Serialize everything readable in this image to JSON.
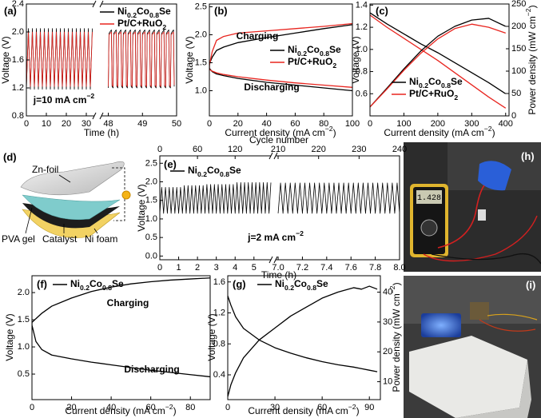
{
  "chart_data": [
    {
      "type": "line",
      "label": "(a)",
      "xlabel": "Time (h)",
      "ylabel": "Voltage (V)",
      "xlim": [
        0,
        50
      ],
      "x_break": [
        34,
        47.8
      ],
      "xticks": [
        0,
        10,
        20,
        30,
        48,
        49,
        50
      ],
      "ylim": [
        0.8,
        2.4
      ],
      "yticks": [
        0.8,
        1.2,
        1.6,
        {
          "value": 2,
          "label": "2.0"
        },
        2.4
      ],
      "annotations": [
        "j=10 mA cm−2"
      ],
      "x": [
        0,
        1,
        2,
        3,
        4,
        5,
        6,
        7,
        8,
        9,
        10,
        11,
        12,
        13,
        14,
        15,
        16,
        17,
        18,
        19,
        20,
        21,
        22,
        23,
        24,
        25,
        26,
        27,
        28,
        29,
        30,
        31,
        32,
        33,
        40,
        48,
        48.02,
        48.09,
        48.11,
        48.14,
        48.16,
        48.23,
        48.25,
        48.28,
        48.3,
        48.37,
        48.39,
        48.42,
        48.44,
        48.51,
        48.53,
        48.56,
        48.58,
        48.65,
        48.67,
        48.7,
        48.72,
        48.79,
        48.81,
        48.84,
        48.86,
        48.93,
        48.95,
        48.98,
        49,
        49.07,
        49.09,
        49.12,
        49.14,
        49.21,
        49.23,
        49.26,
        49.28,
        49.35,
        49.37,
        49.4,
        49.42,
        49.49,
        49.51,
        49.54,
        49.56,
        49.63,
        49.65,
        49.68,
        49.7,
        49.77,
        49.79,
        49.82,
        49.84,
        49.91,
        49.93
      ],
      "series": [
        {
          "name": "Ni0.2Co0.8Se",
          "color": "#000000",
          "values": [
            1.18,
            2.05,
            1.18,
            2.05,
            1.18,
            2.05,
            1.18,
            2.05,
            1.18,
            2.05,
            1.18,
            2.05,
            1.18,
            2.05,
            1.18,
            2.05,
            1.18,
            2.05,
            1.18,
            2.05,
            1.18,
            2.05,
            1.18,
            2.05,
            1.18,
            2.05,
            1.18,
            2.05,
            1.18,
            2.05,
            1.18,
            2.05,
            1.18,
            2.05,
            null,
            1.2,
            1.98,
            2.03,
            1.22,
            1.2,
            1.98,
            2.03,
            1.22,
            1.2,
            1.98,
            2.03,
            1.22,
            1.2,
            1.98,
            2.03,
            1.22,
            1.2,
            1.98,
            2.03,
            1.22,
            1.2,
            1.98,
            2.03,
            1.22,
            1.2,
            1.98,
            2.03,
            1.22,
            1.2,
            1.98,
            2.03,
            1.22,
            1.2,
            1.98,
            2.03,
            1.22,
            1.2,
            1.98,
            2.03,
            1.22,
            1.2,
            1.98,
            2.03,
            1.22,
            1.2,
            1.98,
            2.03,
            1.22,
            1.2,
            1.98,
            2.03,
            1.22,
            1.2,
            1.98,
            2.03,
            1.22
          ]
        },
        {
          "name": "Pt/C+RuO2",
          "color": "#e8251f",
          "values": [
            1.22,
            2,
            1.22,
            2,
            1.22,
            2,
            1.22,
            2,
            1.22,
            2,
            1.22,
            2,
            1.22,
            2,
            1.22,
            2,
            1.22,
            2,
            1.22,
            2,
            1.22,
            2,
            1.22,
            2,
            1.22,
            2,
            1.22,
            2,
            1.22,
            2,
            1.22,
            2,
            1.22,
            2,
            null,
            1.22,
            1.96,
            2,
            1.24,
            1.22,
            1.96,
            2,
            1.24,
            1.22,
            1.96,
            2,
            1.24,
            1.22,
            1.96,
            2,
            1.24,
            1.22,
            1.96,
            2,
            1.24,
            1.22,
            1.96,
            2,
            1.24,
            1.22,
            1.96,
            2,
            1.24,
            1.22,
            1.96,
            2,
            1.24,
            1.22,
            1.96,
            2,
            1.24,
            1.22,
            1.96,
            2,
            1.24,
            1.22,
            1.96,
            2,
            1.24,
            1.22,
            1.96,
            2,
            1.24,
            1.22,
            1.96,
            2,
            1.24,
            1.22,
            1.96,
            2,
            1.24
          ]
        }
      ]
    },
    {
      "type": "line",
      "label": "(b)",
      "xlabel": "Current density (mA cm−2)",
      "ylabel": "Voltage (V)",
      "xlim": [
        0,
        100
      ],
      "xticks": [
        0,
        20,
        40,
        60,
        80,
        100
      ],
      "ylim": [
        0.55,
        2.55
      ],
      "yticks": [
        {
          "value": 1,
          "label": "1.0"
        },
        1.5,
        {
          "value": 2,
          "label": "2.0"
        },
        2.5
      ],
      "annotations": [
        "Charging",
        "Discharging"
      ],
      "x": [
        100,
        80,
        60,
        40,
        20,
        10,
        5,
        2,
        0,
        0,
        2,
        5,
        10,
        20,
        40,
        60,
        80,
        100
      ],
      "series": [
        {
          "name": "Ni0.2Co0.8Se",
          "color": "#000000",
          "values": [
            1.0,
            1.05,
            1.1,
            1.15,
            1.22,
            1.27,
            1.3,
            1.34,
            1.4,
            1.48,
            1.6,
            1.72,
            1.78,
            1.86,
            1.95,
            2.03,
            2.11,
            2.18
          ]
        },
        {
          "name": "Pt/C+RuO2",
          "color": "#e8251f",
          "values": [
            1.06,
            1.1,
            1.14,
            1.19,
            1.25,
            1.29,
            1.32,
            1.35,
            1.38,
            1.45,
            1.7,
            1.9,
            1.97,
            2.03,
            2.07,
            2.11,
            2.15,
            2.2
          ]
        }
      ]
    },
    {
      "type": "line",
      "label": "(c)",
      "xlabel": "Current density (mA cm−2)",
      "ylabel": "Voltage (V)",
      "y2label": "Power density (mW cm−2)",
      "xlim": [
        0,
        410
      ],
      "xticks": [
        0,
        100,
        200,
        300,
        400
      ],
      "ylim": [
        0.4,
        1.41
      ],
      "yticks": [
        0.6,
        0.8,
        {
          "value": 1,
          "label": "1.0"
        },
        1.2,
        1.4
      ],
      "y2lim": [
        0,
        250
      ],
      "y2ticks": [
        0,
        50,
        100,
        150,
        200,
        250
      ],
      "x": [
        0,
        50,
        100,
        150,
        200,
        250,
        300,
        350,
        400
      ],
      "series": [
        {
          "name": "Ni0.2Co0.8Se",
          "color": "#000000",
          "values": [
            1.33,
            1.23,
            1.14,
            1.05,
            0.97,
            0.88,
            0.79,
            0.7,
            0.6
          ]
        },
        {
          "name": "Pt/C+RuO2",
          "color": "#e8251f",
          "values": [
            1.31,
            1.2,
            1.1,
            1.0,
            0.9,
            0.79,
            0.68,
            0.57,
            0.47
          ]
        },
        {
          "color": "#000000",
          "axis": "y2",
          "values": [
            20,
            62,
            105,
            145,
            178,
            200,
            214,
            218,
            200
          ]
        },
        {
          "color": "#e8251f",
          "axis": "y2",
          "values": [
            20,
            60,
            102,
            140,
            172,
            195,
            205,
            198,
            185
          ]
        }
      ]
    },
    {
      "type": "line",
      "label": "(e)",
      "xlabel": "Time (h)",
      "x2label": "Cycle number",
      "ylabel": "Voltage (V)",
      "xlim": [
        0,
        8
      ],
      "x_break": [
        5.9,
        6.98
      ],
      "xticks": [
        0,
        1,
        2,
        3,
        4,
        5,
        {
          "value": 7,
          "label": "7.0"
        },
        7.2,
        7.4,
        7.6,
        7.8,
        {
          "value": 8,
          "label": "8.0"
        }
      ],
      "x2lim": [
        0,
        240
      ],
      "x2_break": [
        177,
        209.4
      ],
      "x2ticks": [
        0,
        60,
        120,
        210,
        220,
        230,
        240
      ],
      "ylim": [
        -0.1,
        2.7
      ],
      "yticks": [
        {
          "value": 0,
          "label": "0.0"
        },
        0.5,
        {
          "value": 1,
          "label": "1.0"
        },
        1.5,
        {
          "value": 2,
          "label": "2.0"
        },
        2.5
      ],
      "annotations": [
        "j=2 mA cm−2"
      ],
      "x": [
        0,
        0.1,
        0.2,
        0.3,
        0.4,
        0.5,
        0.6,
        0.7,
        0.8,
        0.9,
        1,
        1.1,
        1.2,
        1.3,
        1.4,
        1.5,
        1.6,
        1.7,
        1.8,
        1.9,
        2,
        2.1,
        2.2,
        2.3,
        2.4,
        2.5,
        2.6,
        2.7,
        2.8,
        2.9,
        3,
        3.1,
        3.2,
        3.3,
        3.4,
        3.5,
        3.6,
        3.7,
        3.8,
        3.9,
        4,
        4.1,
        4.2,
        4.3,
        4.4,
        4.5,
        4.6,
        4.7,
        4.8,
        4.9,
        5,
        5.1,
        5.2,
        5.3,
        5.4,
        5.5,
        5.6,
        5.7,
        5.8,
        5.9,
        6.4,
        7,
        7.02,
        7.04,
        7.06,
        7.08,
        7.1,
        7.12,
        7.14,
        7.16,
        7.18,
        7.2,
        7.22,
        7.24,
        7.26,
        7.28,
        7.3,
        7.32,
        7.34,
        7.36,
        7.38,
        7.4,
        7.42,
        7.44,
        7.46,
        7.48,
        7.5,
        7.52,
        7.54,
        7.56,
        7.58,
        7.6,
        7.62,
        7.64,
        7.66,
        7.68,
        7.7,
        7.72,
        7.74,
        7.76,
        7.78,
        7.8,
        7.82,
        7.84,
        7.86,
        7.88,
        7.9,
        7.92,
        7.94,
        7.96,
        7.98,
        8
      ],
      "series": [
        {
          "name": "Ni0.2Co0.8Se",
          "color": "#000000",
          "values": [
            1.15,
            1.85,
            1.15,
            1.85,
            1.15,
            1.85,
            1.15,
            1.85,
            1.15,
            1.85,
            1.15,
            1.85,
            1.15,
            1.9,
            1.15,
            1.9,
            1.15,
            1.9,
            1.15,
            1.9,
            1.15,
            1.9,
            1.15,
            1.9,
            1.15,
            1.93,
            1.15,
            1.93,
            1.15,
            1.93,
            1.15,
            1.93,
            1.15,
            1.93,
            1.15,
            1.93,
            1.15,
            1.93,
            1.15,
            1.93,
            1.15,
            1.98,
            1.15,
            1.98,
            1.15,
            1.98,
            1.15,
            1.98,
            1.15,
            1.98,
            1.15,
            1.98,
            1.15,
            1.98,
            1.15,
            1.98,
            1.15,
            1.98,
            1.15,
            1.98,
            null,
            1.15,
            1.97,
            1.15,
            1.97,
            1.15,
            1.97,
            1.15,
            1.97,
            1.15,
            1.97,
            1.15,
            1.97,
            1.15,
            1.97,
            1.15,
            1.97,
            1.15,
            1.97,
            1.15,
            1.97,
            1.15,
            1.97,
            1.15,
            1.97,
            1.15,
            1.97,
            1.15,
            1.97,
            1.15,
            1.97,
            1.15,
            1.97,
            1.15,
            1.97,
            1.15,
            1.97,
            1.15,
            1.97,
            1.15,
            1.97,
            1.15,
            1.97,
            1.15,
            1.97,
            1.15,
            1.97,
            1.15,
            1.97,
            1.15,
            1.97,
            1.15
          ]
        }
      ]
    },
    {
      "type": "line",
      "label": "(f)",
      "xlabel": "Current density (mA cm−2)",
      "ylabel": "Voltage (V)",
      "xlim": [
        0,
        90
      ],
      "xticks": [
        0,
        20,
        40,
        60,
        80
      ],
      "ylim": [
        0.03,
        2.31
      ],
      "yticks": [
        0.5,
        {
          "value": 1,
          "label": "1.0"
        },
        1.5,
        {
          "value": 2,
          "label": "2.0"
        }
      ],
      "annotations": [
        "Charging",
        "Discharging"
      ],
      "x": [
        90,
        80,
        70,
        60,
        50,
        40,
        30,
        20,
        10,
        5,
        2,
        0,
        0,
        2,
        5,
        10,
        20,
        30,
        40,
        50,
        60,
        70,
        80,
        90
      ],
      "series": [
        {
          "name": "Ni0.2Co0.8Se",
          "color": "#000000",
          "values": [
            0.45,
            0.49,
            0.53,
            0.57,
            0.62,
            0.67,
            0.72,
            0.78,
            0.85,
            0.95,
            1.1,
            1.4,
            1.45,
            1.52,
            1.62,
            1.75,
            1.9,
            2.02,
            2.1,
            2.16,
            2.2,
            2.23,
            2.25,
            2.27
          ]
        }
      ]
    },
    {
      "type": "line",
      "label": "(g)",
      "xlabel": "Current density (mA cm−2)",
      "ylabel": "Voltage (V)",
      "y2label": "Power density (mW cm−2)",
      "xlim": [
        0,
        97
      ],
      "xticks": [
        0,
        30,
        60,
        90
      ],
      "ylim": [
        0.08,
        1.68
      ],
      "yticks": [
        0.4,
        0.8,
        1.2,
        1.6
      ],
      "y2lim": [
        4,
        45.5
      ],
      "y2ticks": [
        10,
        20,
        30,
        40
      ],
      "x": [
        0,
        2,
        5,
        10,
        20,
        30,
        40,
        50,
        60,
        70,
        80,
        85,
        90,
        95
      ],
      "series": [
        {
          "name": "Ni0.2Co0.8Se",
          "color": "#000000",
          "values": [
            1.42,
            1.3,
            1.15,
            1.0,
            0.85,
            0.75,
            0.68,
            0.62,
            0.57,
            0.53,
            0.5,
            0.48,
            0.46,
            0.44
          ]
        },
        {
          "color": "#000000",
          "axis": "y2",
          "values": [
            5,
            9,
            13,
            18,
            24,
            28,
            32,
            35,
            38,
            40,
            41.5,
            41,
            42,
            41
          ]
        }
      ]
    }
  ],
  "panel_d": {
    "label": "(d)",
    "labels": [
      "Zn-foil",
      "PVA gel",
      "Catalyst",
      "Ni foam"
    ]
  },
  "panel_h": {
    "label": "(h)",
    "display": "1.428"
  },
  "panel_i": {
    "label": "(i)"
  }
}
